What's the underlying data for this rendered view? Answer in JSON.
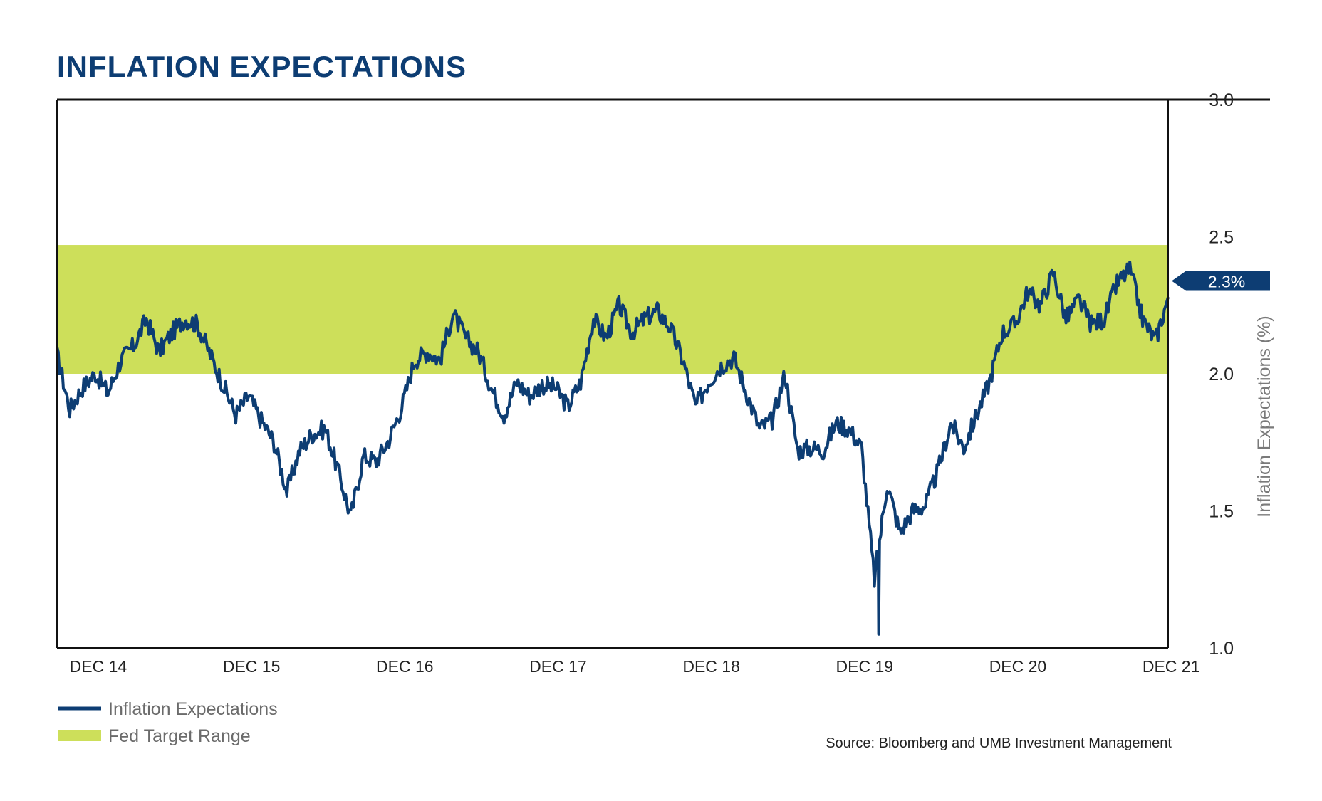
{
  "chart_data": {
    "type": "line",
    "title": "INFLATION EXPECTATIONS",
    "ylabel": "Inflation Expectations (%)",
    "ylim": [
      1.0,
      3.0
    ],
    "yticks": [
      "1.0",
      "1.5",
      "2.0",
      "2.5",
      "3.0"
    ],
    "x_range": [
      "2014-11",
      "2022-02"
    ],
    "x_tick_labels": [
      {
        "date": "2014-12",
        "label": "DEC 14"
      },
      {
        "date": "2015-12",
        "label": "DEC 15"
      },
      {
        "date": "2016-12",
        "label": "DEC 16"
      },
      {
        "date": "2017-12",
        "label": "DEC 17"
      },
      {
        "date": "2018-12",
        "label": "DEC 18"
      },
      {
        "date": "2019-12",
        "label": "DEC 19"
      },
      {
        "date": "2020-12",
        "label": "DEC 20"
      },
      {
        "date": "2021-12",
        "label": "DEC 21"
      }
    ],
    "target_band": {
      "name": "Fed Target Range",
      "low": 2.0,
      "high": 2.47,
      "color": "#cddf5a"
    },
    "callout": {
      "value": 2.3,
      "label": "2.3%"
    },
    "legend": [
      {
        "label": "Inflation Expectations",
        "kind": "line",
        "color": "#0d3d73"
      },
      {
        "label": "Fed Target Range",
        "kind": "band",
        "color": "#cddf5a"
      }
    ],
    "legend_position": "bottom-left",
    "grid": false,
    "source": "Source: Bloomberg and UMB Investment Management",
    "series": [
      {
        "name": "Inflation Expectations",
        "color": "#0d3d73",
        "points": [
          [
            "2014-11",
            2.07
          ],
          [
            "2014-12",
            1.87
          ],
          [
            "2015-01",
            1.95
          ],
          [
            "2015-02",
            2.0
          ],
          [
            "2015-03",
            1.93
          ],
          [
            "2015-04",
            2.05
          ],
          [
            "2015-05",
            2.1
          ],
          [
            "2015-06",
            2.2
          ],
          [
            "2015-07",
            2.08
          ],
          [
            "2015-08",
            2.15
          ],
          [
            "2015-09",
            2.2
          ],
          [
            "2015-10",
            2.18
          ],
          [
            "2015-11",
            2.07
          ],
          [
            "2015-12",
            1.96
          ],
          [
            "2016-01",
            1.85
          ],
          [
            "2016-02",
            1.92
          ],
          [
            "2016-03",
            1.83
          ],
          [
            "2016-04",
            1.75
          ],
          [
            "2016-05",
            1.57
          ],
          [
            "2016-06",
            1.72
          ],
          [
            "2016-07",
            1.78
          ],
          [
            "2016-08",
            1.8
          ],
          [
            "2016-09",
            1.65
          ],
          [
            "2016-10",
            1.48
          ],
          [
            "2016-11",
            1.7
          ],
          [
            "2016-12",
            1.68
          ],
          [
            "2017-01",
            1.76
          ],
          [
            "2017-02",
            1.88
          ],
          [
            "2017-03",
            2.05
          ],
          [
            "2017-04",
            2.08
          ],
          [
            "2017-05",
            2.05
          ],
          [
            "2017-06",
            2.22
          ],
          [
            "2017-07",
            2.13
          ],
          [
            "2017-08",
            2.08
          ],
          [
            "2017-09",
            1.95
          ],
          [
            "2017-10",
            1.85
          ],
          [
            "2017-11",
            1.97
          ],
          [
            "2017-12",
            1.92
          ],
          [
            "2018-01",
            1.96
          ],
          [
            "2018-02",
            1.95
          ],
          [
            "2018-03",
            1.88
          ],
          [
            "2018-04",
            1.97
          ],
          [
            "2018-05",
            2.2
          ],
          [
            "2018-06",
            2.13
          ],
          [
            "2018-07",
            2.25
          ],
          [
            "2018-08",
            2.15
          ],
          [
            "2018-09",
            2.2
          ],
          [
            "2018-10",
            2.23
          ],
          [
            "2018-11",
            2.17
          ],
          [
            "2018-12",
            2.05
          ],
          [
            "2019-01",
            1.88
          ],
          [
            "2019-02",
            1.97
          ],
          [
            "2019-03",
            2.03
          ],
          [
            "2019-04",
            2.06
          ],
          [
            "2019-05",
            1.93
          ],
          [
            "2019-06",
            1.8
          ],
          [
            "2019-07",
            1.83
          ],
          [
            "2019-08",
            2.0
          ],
          [
            "2019-09",
            1.72
          ],
          [
            "2019-10",
            1.73
          ],
          [
            "2019-11",
            1.72
          ],
          [
            "2019-12",
            1.82
          ],
          [
            "2020-01",
            1.8
          ],
          [
            "2020-02",
            1.73
          ],
          [
            "2020-03",
            1.25
          ],
          [
            "2020-04",
            1.6
          ],
          [
            "2020-05",
            1.42
          ],
          [
            "2020-06",
            1.5
          ],
          [
            "2020-07",
            1.52
          ],
          [
            "2020-08",
            1.65
          ],
          [
            "2020-09",
            1.82
          ],
          [
            "2020-10",
            1.73
          ],
          [
            "2020-11",
            1.85
          ],
          [
            "2020-12",
            1.97
          ],
          [
            "2021-01",
            2.15
          ],
          [
            "2021-02",
            2.18
          ],
          [
            "2021-03",
            2.3
          ],
          [
            "2021-04",
            2.25
          ],
          [
            "2021-05",
            2.37
          ],
          [
            "2021-06",
            2.2
          ],
          [
            "2021-07",
            2.27
          ],
          [
            "2021-08",
            2.18
          ],
          [
            "2021-09",
            2.2
          ],
          [
            "2021-10",
            2.33
          ],
          [
            "2021-11",
            2.38
          ],
          [
            "2021-12",
            2.2
          ],
          [
            "2022-01",
            2.12
          ],
          [
            "2022-02",
            2.28
          ]
        ]
      }
    ]
  }
}
